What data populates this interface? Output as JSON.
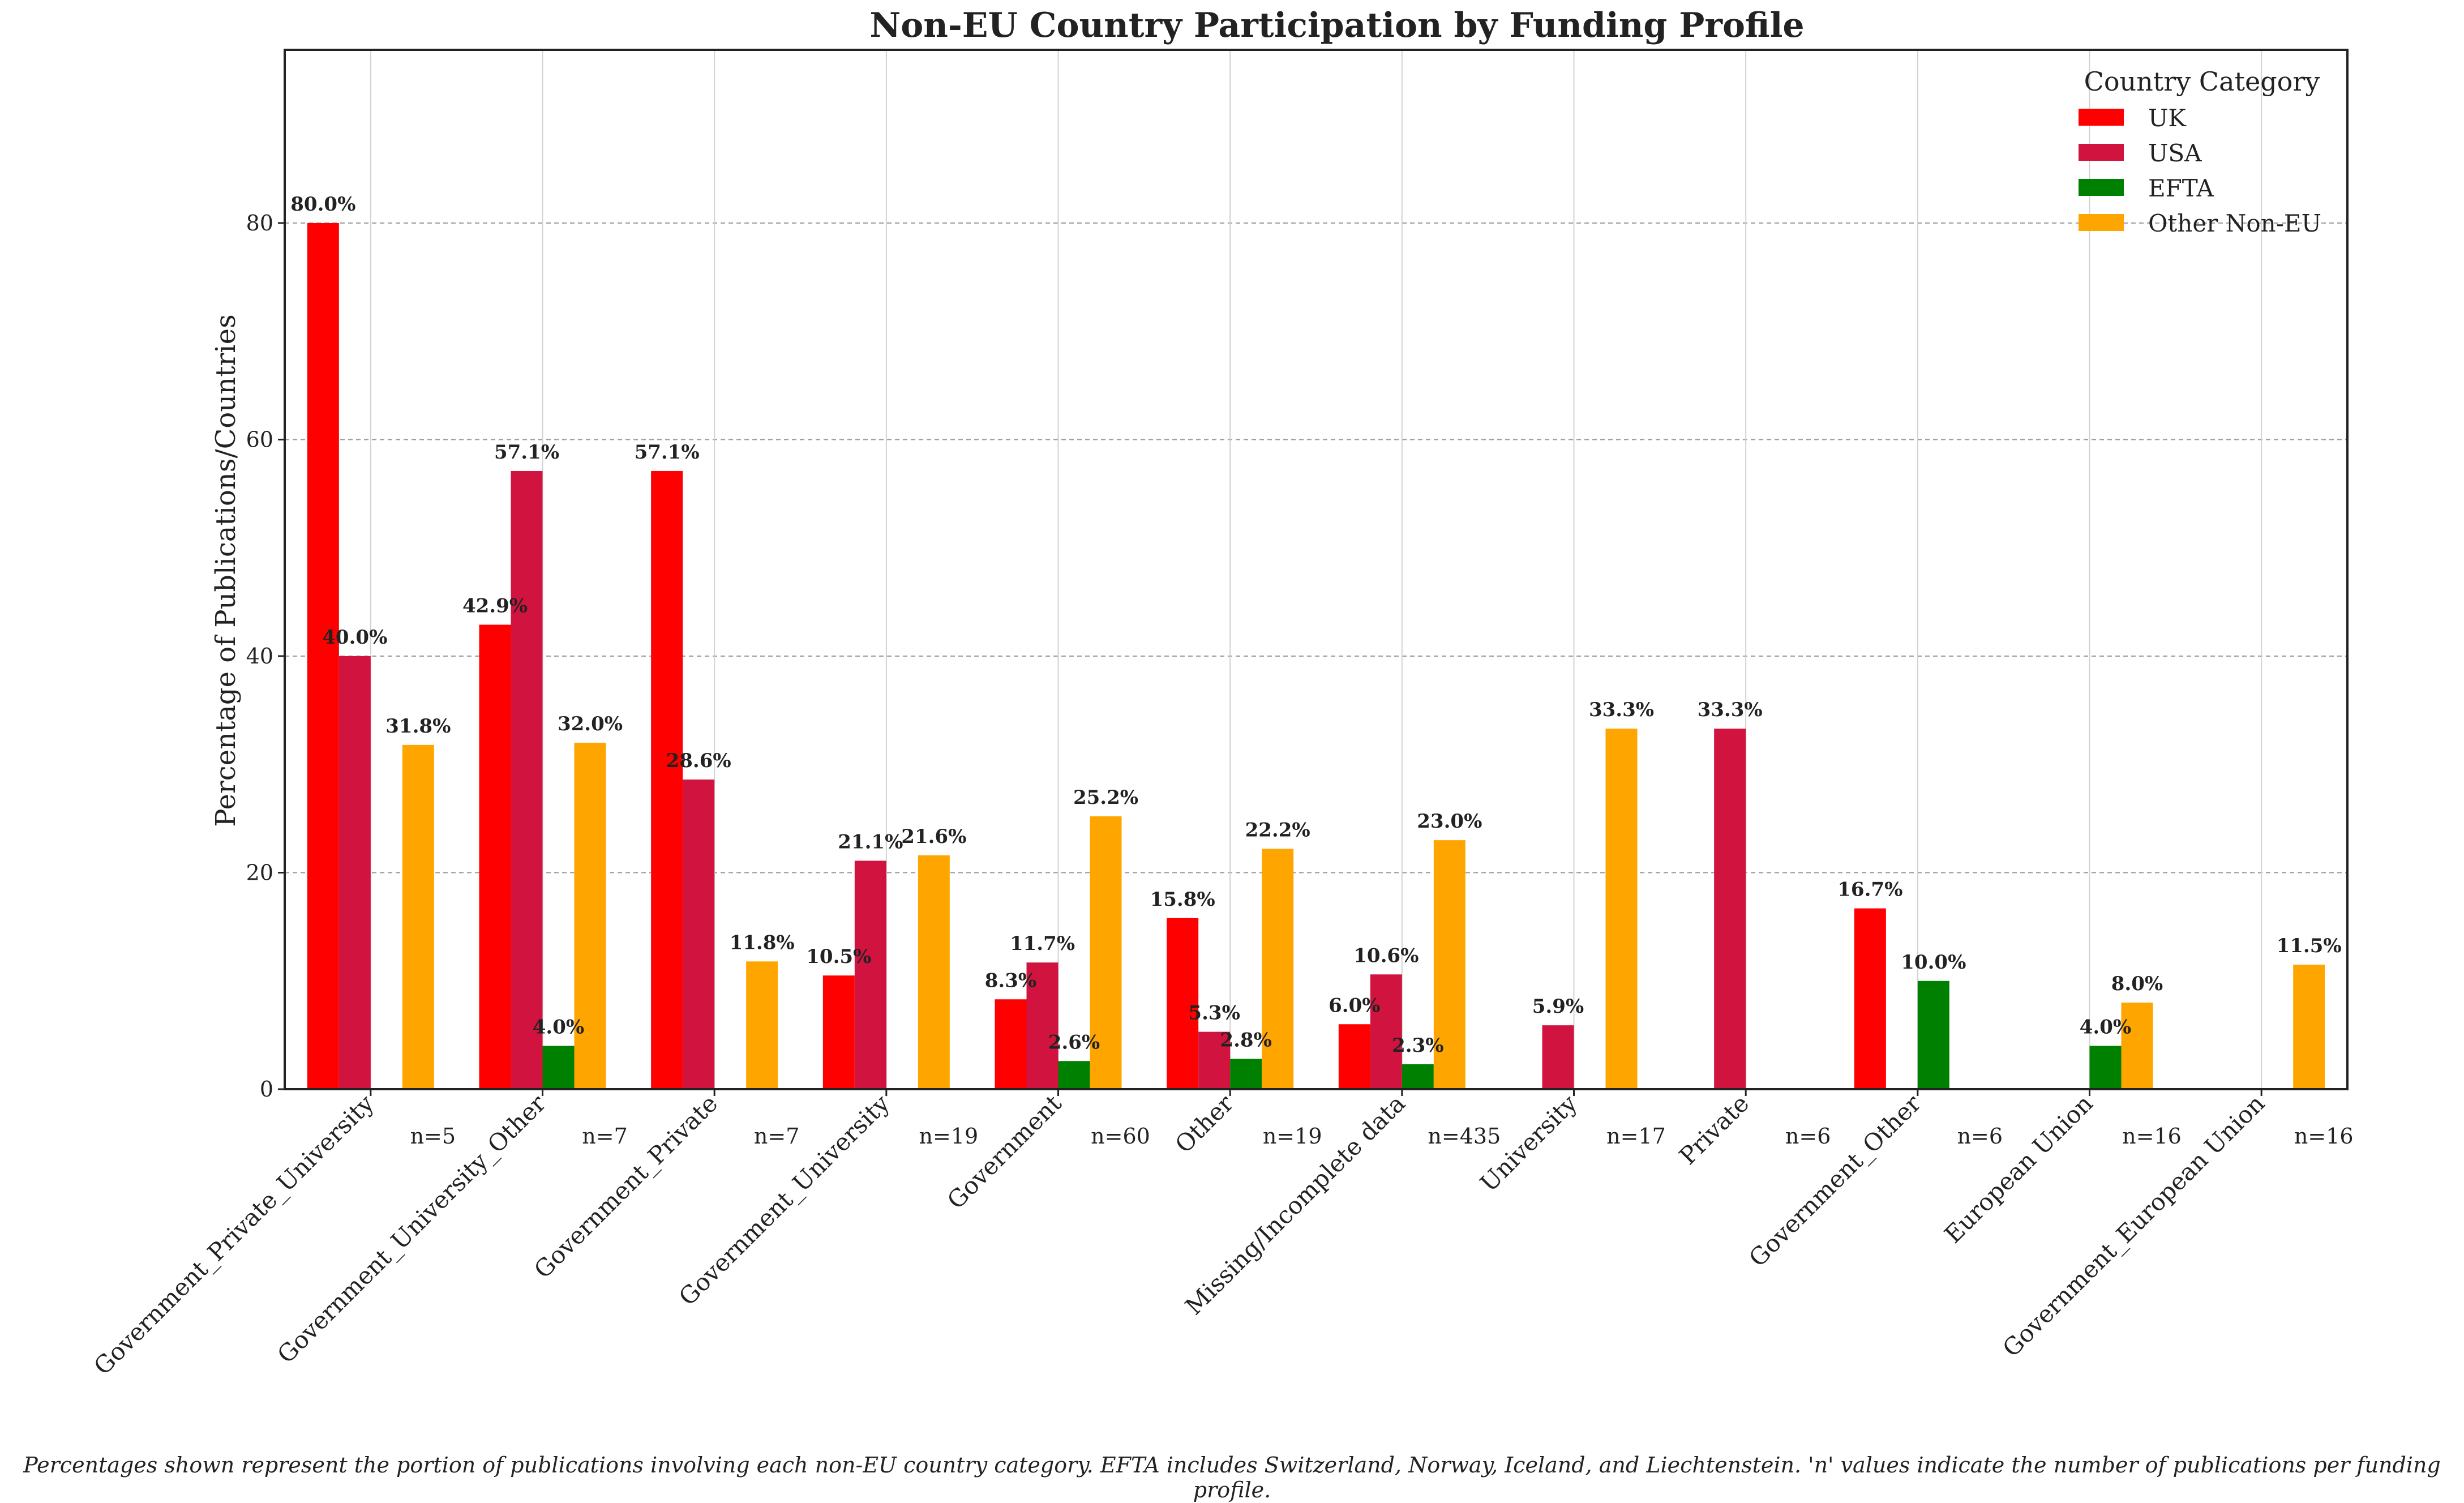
{
  "chart_data": {
    "type": "bar",
    "title": "Non-EU Country Participation by Funding Profile",
    "ylabel": "Percentage of Publications/Countries",
    "xlabel": "",
    "ylim": [
      0,
      96
    ],
    "yticks": [
      0,
      20,
      40,
      60,
      80
    ],
    "grid": true,
    "legend": {
      "title": "Country Category",
      "placement": "top-right"
    },
    "categories": [
      "Government_Private_University",
      "Government_University_Other",
      "Government_Private",
      "Government_University",
      "Government",
      "Other",
      "Missing/Incomplete data",
      "University",
      "Private",
      "Government_Other",
      "European Union",
      "Government_European Union"
    ],
    "n_labels": [
      "n=5",
      "n=7",
      "n=7",
      "n=19",
      "n=60",
      "n=19",
      "n=435",
      "n=17",
      "n=6",
      "n=6",
      "n=16",
      "n=16"
    ],
    "series": [
      {
        "name": "UK",
        "color": "#ff0000",
        "values": [
          80.0,
          42.9,
          57.1,
          10.5,
          8.3,
          15.8,
          6.0,
          0,
          0,
          16.7,
          0,
          0
        ],
        "labels": [
          "80.0%",
          "42.9%",
          "57.1%",
          "10.5%",
          "8.3%",
          "15.8%",
          "6.0%",
          "",
          "",
          "16.7%",
          "",
          ""
        ]
      },
      {
        "name": "USA",
        "color": "#d0143f",
        "values": [
          40.0,
          57.1,
          28.6,
          21.1,
          11.7,
          5.3,
          10.6,
          5.9,
          33.3,
          0,
          0,
          0
        ],
        "labels": [
          "40.0%",
          "57.1%",
          "28.6%",
          "21.1%",
          "11.7%",
          "5.3%",
          "10.6%",
          "5.9%",
          "33.3%",
          "",
          "",
          ""
        ]
      },
      {
        "name": "EFTA",
        "color": "#008000",
        "values": [
          0,
          4.0,
          0,
          0,
          2.6,
          2.8,
          2.3,
          0,
          0,
          10.0,
          4.0,
          0
        ],
        "labels": [
          "",
          "4.0%",
          "",
          "",
          "2.6%",
          "2.8%",
          "2.3%",
          "",
          "",
          "10.0%",
          "4.0%",
          ""
        ]
      },
      {
        "name": "Other Non-EU",
        "color": "#ffa500",
        "values": [
          31.8,
          32.0,
          11.8,
          21.6,
          25.2,
          22.2,
          23.0,
          33.3,
          0,
          0,
          8.0,
          11.5
        ],
        "labels": [
          "31.8%",
          "32.0%",
          "11.8%",
          "21.6%",
          "25.2%",
          "22.2%",
          "23.0%",
          "33.3%",
          "",
          "",
          "8.0%",
          "11.5%"
        ]
      }
    ]
  },
  "footnote": "Percentages shown represent the portion of publications involving each non-EU country category. EFTA includes Switzerland, Norway, Iceland, and Liechtenstein. 'n' values indicate the number of publications per funding profile."
}
